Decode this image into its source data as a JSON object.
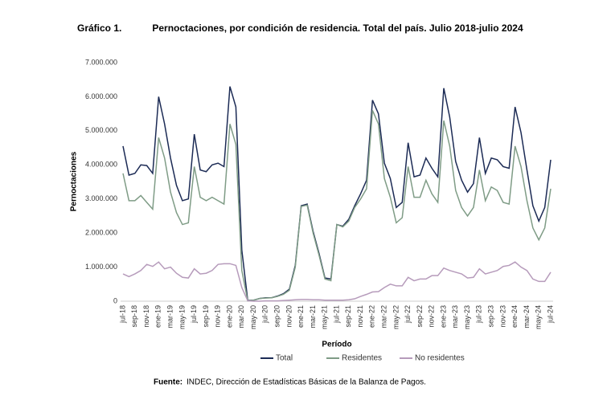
{
  "figure_label": "Gráfico 1.",
  "source": {
    "label": "Fuente:",
    "text": "INDEC, Dirección de Estadísticas Básicas de la Balanza de Pagos."
  },
  "chart_data": {
    "type": "line",
    "title": "Pernoctaciones, por condición de residencia. Total del país. Julio 2018-julio 2024",
    "y_label": "Pernoctaciones",
    "x_label": "Período",
    "categories": [
      "jul-18",
      null,
      "sep-18",
      null,
      "nov-18",
      null,
      "ene-19",
      null,
      "mar-19",
      null,
      "may-19",
      null,
      "jul-19",
      null,
      "sep-19",
      null,
      "nov-19",
      null,
      "ene-20",
      null,
      "mar-20",
      null,
      "may-20",
      null,
      "jul-20",
      null,
      "sep-20",
      null,
      "nov-20",
      null,
      "ene-21",
      null,
      "mar-21",
      null,
      "may-21",
      null,
      "jul-21",
      null,
      "sep-21",
      null,
      "nov-21",
      null,
      "ene-22",
      null,
      "mar-22",
      null,
      "may-22",
      null,
      "jul-22",
      null,
      "sep-22",
      null,
      "nov-22",
      null,
      "ene-23",
      null,
      "mar-23",
      null,
      "may-23",
      null,
      "jul-23",
      null,
      "sep-23",
      null,
      "nov-23",
      null,
      "ene-24",
      null,
      "mar-24",
      null,
      "may-24",
      null,
      "jul-24"
    ],
    "series": [
      {
        "name": "Total",
        "color": "#1c2b55",
        "values": [
          4550000,
          3700000,
          3750000,
          4000000,
          3980000,
          3750000,
          6000000,
          5200000,
          4200000,
          3400000,
          2950000,
          3000000,
          4900000,
          3850000,
          3800000,
          4000000,
          4050000,
          3950000,
          6300000,
          5700000,
          1500000,
          20000,
          30000,
          80000,
          100000,
          100000,
          150000,
          220000,
          350000,
          1050000,
          2800000,
          2850000,
          2050000,
          1400000,
          680000,
          650000,
          2250000,
          2200000,
          2400000,
          2800000,
          3150000,
          3550000,
          5900000,
          5500000,
          4050000,
          3600000,
          2750000,
          2900000,
          4650000,
          3650000,
          3700000,
          4200000,
          3900000,
          3650000,
          6250000,
          5400000,
          4100000,
          3550000,
          3200000,
          3450000,
          4800000,
          3750000,
          4200000,
          4150000,
          3950000,
          3900000,
          5700000,
          4950000,
          3850000,
          2800000,
          2350000,
          2750000,
          4150000
        ]
      },
      {
        "name": "Residentes",
        "color": "#7f9c86",
        "values": [
          3750000,
          2950000,
          2950000,
          3100000,
          2900000,
          2700000,
          4800000,
          4200000,
          3200000,
          2600000,
          2250000,
          2300000,
          3950000,
          3050000,
          2950000,
          3050000,
          2950000,
          2850000,
          5200000,
          4600000,
          900000,
          10000,
          30000,
          80000,
          90000,
          100000,
          140000,
          200000,
          320000,
          1000000,
          2780000,
          2820000,
          2000000,
          1350000,
          650000,
          600000,
          2250000,
          2180000,
          2350000,
          2750000,
          3000000,
          3300000,
          5600000,
          5200000,
          3600000,
          3050000,
          2300000,
          2450000,
          3950000,
          3050000,
          3050000,
          3550000,
          3150000,
          2900000,
          5300000,
          4550000,
          3250000,
          2750000,
          2500000,
          2750000,
          3850000,
          2950000,
          3350000,
          3250000,
          2900000,
          2850000,
          4550000,
          3950000,
          2950000,
          2150000,
          1800000,
          2150000,
          3300000
        ]
      },
      {
        "name": "No residentes",
        "color": "#b69bbb",
        "values": [
          800000,
          720000,
          800000,
          900000,
          1080000,
          1020000,
          1150000,
          950000,
          1000000,
          820000,
          700000,
          680000,
          950000,
          800000,
          820000,
          900000,
          1080000,
          1100000,
          1100000,
          1050000,
          400000,
          10000,
          0,
          0,
          10000,
          10000,
          10000,
          20000,
          30000,
          40000,
          50000,
          50000,
          40000,
          40000,
          30000,
          30000,
          30000,
          30000,
          40000,
          70000,
          140000,
          200000,
          270000,
          280000,
          400000,
          500000,
          450000,
          450000,
          700000,
          600000,
          650000,
          650000,
          750000,
          750000,
          970000,
          900000,
          850000,
          800000,
          680000,
          700000,
          950000,
          800000,
          850000,
          900000,
          1020000,
          1050000,
          1150000,
          1000000,
          900000,
          650000,
          580000,
          580000,
          850000
        ]
      }
    ],
    "ylim": [
      0,
      7000000
    ],
    "yticks": [
      0,
      {
        "value": 1000000,
        "label": "1.000.000"
      },
      {
        "value": 2000000,
        "label": "2.000.000"
      },
      {
        "value": 3000000,
        "label": "3.000.000"
      },
      {
        "value": 4000000,
        "label": "4.000.000"
      },
      {
        "value": 5000000,
        "label": "5.000.000"
      },
      {
        "value": 6000000,
        "label": "6.000.000"
      },
      {
        "value": 7000000,
        "label": "7.000.000"
      }
    ],
    "grid": false,
    "legend": "bottom"
  }
}
